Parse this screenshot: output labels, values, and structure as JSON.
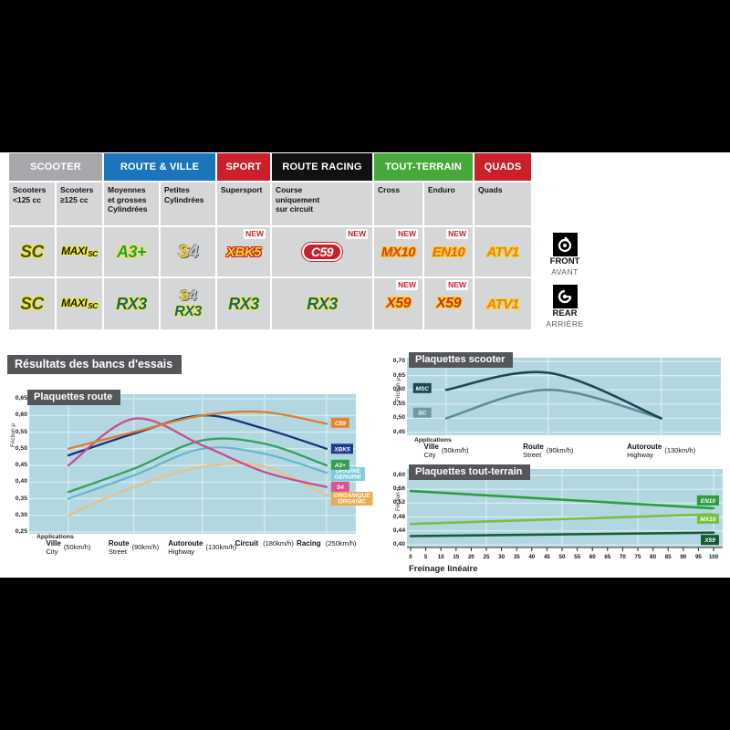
{
  "section_title": "Résultats des bancs d'essais",
  "table": {
    "new_badge": "NEW",
    "front": {
      "en": "FRONT",
      "fr": "AVANT"
    },
    "rear": {
      "en": "REAR",
      "fr": "ARRIÈRE"
    },
    "header": [
      {
        "label": "SCOOTER",
        "color": "#a6a8ab",
        "span": 2
      },
      {
        "label": "ROUTE & VILLE",
        "color": "#1b75bc",
        "span": 2
      },
      {
        "label": "SPORT",
        "color": "#c9202c",
        "span": 1
      },
      {
        "label": "ROUTE RACING",
        "color": "#111111",
        "span": 1
      },
      {
        "label": "TOUT-TERRAIN",
        "color": "#48a93b",
        "span": 2
      },
      {
        "label": "QUADS",
        "color": "#c9202c",
        "span": 1
      }
    ],
    "subheader": [
      "Scooters\n<125 cc",
      "Scooters\n≥125 cc",
      "Moyennes\net grosses\nCylindrées",
      "Petites\nCylindrées",
      "Supersport",
      "Course\nuniquement\nsur circuit",
      "Cross",
      "Enduro",
      "Quads"
    ],
    "rows": [
      {
        "side": "front",
        "cells": [
          {
            "logos": [
              {
                "text": "SC",
                "style": "sc"
              }
            ]
          },
          {
            "logos": [
              {
                "text": "MAXI",
                "sub": "SC",
                "style": "maxisc"
              }
            ]
          },
          {
            "logos": [
              {
                "text": "A3+",
                "style": "a3"
              }
            ]
          },
          {
            "logos": [
              {
                "text": "S4",
                "style": "s4"
              }
            ]
          },
          {
            "logos": [
              {
                "text": "XBK5",
                "style": "xbk5"
              }
            ],
            "new": true
          },
          {
            "logos": [
              {
                "text": "C59",
                "style": "c59"
              }
            ],
            "new": true
          },
          {
            "logos": [
              {
                "text": "MX10",
                "style": "mx10"
              }
            ],
            "new": true
          },
          {
            "logos": [
              {
                "text": "EN10",
                "style": "en10"
              }
            ],
            "new": true
          },
          {
            "logos": [
              {
                "text": "ATV1",
                "style": "atv1"
              }
            ]
          }
        ]
      },
      {
        "side": "rear",
        "cells": [
          {
            "logos": [
              {
                "text": "SC",
                "style": "sc"
              }
            ]
          },
          {
            "logos": [
              {
                "text": "MAXI",
                "sub": "SC",
                "style": "maxisc"
              }
            ]
          },
          {
            "logos": [
              {
                "text": "RX3",
                "style": "rx3"
              }
            ]
          },
          {
            "logos": [
              {
                "text": "S4",
                "style": "s4"
              },
              {
                "text": "RX3",
                "style": "rx3"
              }
            ]
          },
          {
            "logos": [
              {
                "text": "RX3",
                "style": "rx3"
              }
            ]
          },
          {
            "logos": [
              {
                "text": "RX3",
                "style": "rx3"
              }
            ]
          },
          {
            "logos": [
              {
                "text": "X59",
                "style": "x59"
              }
            ],
            "new": true
          },
          {
            "logos": [
              {
                "text": "X59",
                "style": "x59"
              }
            ],
            "new": true
          },
          {
            "logos": [
              {
                "text": "ATV1",
                "style": "atv1"
              }
            ]
          }
        ]
      }
    ]
  },
  "chart_data": [
    {
      "id": "route",
      "type": "line",
      "title": "Plaquettes route",
      "ylabel": "Friction µ",
      "xlabel": "Applications",
      "ylim": [
        0.25,
        0.65
      ],
      "yticks": [
        "0,65",
        "0,60",
        "0,55",
        "0,50",
        "0,45",
        "0,40",
        "0,35",
        "0,30",
        "0,25"
      ],
      "categories": [
        {
          "fr": "Ville",
          "en": "City",
          "speed": "(50km/h)"
        },
        {
          "fr": "Route",
          "en": "Street",
          "speed": "(90km/h)"
        },
        {
          "fr": "Autoroute",
          "en": "Highway",
          "speed": "(130km/h)"
        },
        {
          "fr": "Circuit",
          "en": "",
          "speed": "(180km/h)"
        },
        {
          "fr": "Racing",
          "en": "",
          "speed": "(250km/h)"
        }
      ],
      "series": [
        {
          "name": "ORGANIQUE",
          "color": "#e3c28b",
          "values": [
            0.3,
            0.385,
            0.445,
            0.447,
            0.36
          ],
          "label": [
            "ORGANIQUE",
            "ORGANIC"
          ],
          "label_bg": "#efa94f",
          "label_v": 0.35
        },
        {
          "name": "ORIGINE",
          "color": "#66b9cc",
          "values": [
            0.35,
            0.42,
            0.5,
            0.485,
            0.428
          ],
          "label": [
            "ORIGINE",
            "GENUINE"
          ],
          "label_bg": "#7ecbdc",
          "label_v": 0.424
        },
        {
          "name": "A3+",
          "color": "#35a05c",
          "values": [
            0.37,
            0.44,
            0.525,
            0.515,
            0.45
          ],
          "label": [
            "A3+"
          ],
          "label_bg": "#33a04e",
          "label_v": 0.452
        },
        {
          "name": "XBK5",
          "color": "#1b2f7e",
          "values": [
            0.48,
            0.545,
            0.6,
            0.56,
            0.5
          ],
          "label": [
            "XBK5"
          ],
          "label_bg": "#1c3d8f",
          "label_v": 0.5
        },
        {
          "name": "S4",
          "color": "#c94d8c",
          "values": [
            0.45,
            0.59,
            0.51,
            0.43,
            0.385
          ],
          "label": [
            "S4"
          ],
          "label_bg": "#d9568e",
          "label_v": 0.386
        },
        {
          "name": "C59",
          "color": "#dd7d2f",
          "values": [
            0.5,
            0.55,
            0.6,
            0.61,
            0.575
          ],
          "label": [
            "C59"
          ],
          "label_bg": "#e8832c",
          "label_v": 0.578
        }
      ]
    },
    {
      "id": "scooter",
      "type": "line",
      "title": "Plaquettes scooter",
      "ylabel": "Friction µ",
      "xlabel": "Applications",
      "ylim": [
        0.45,
        0.7
      ],
      "yticks": [
        "0,70",
        "0,65",
        "0,60",
        "0,55",
        "0,50",
        "0,45"
      ],
      "categories": [
        {
          "fr": "Ville",
          "en": "City",
          "speed": "(50km/h)"
        },
        {
          "fr": "Route",
          "en": "Street",
          "speed": "(90km/h)"
        },
        {
          "fr": "Autoroute",
          "en": "Highway",
          "speed": "(130km/h)"
        }
      ],
      "series": [
        {
          "name": "SC",
          "color": "#5d8d99",
          "values": [
            0.5,
            0.6,
            0.5
          ],
          "label": [
            "SC"
          ],
          "label_bg": "#6f9aa5",
          "label_pos": {
            "fx": 0.095,
            "v": 0.52
          }
        },
        {
          "name": "MSC",
          "color": "#1d4654",
          "values": [
            0.6,
            0.66,
            0.5
          ],
          "label": [
            "MSC"
          ],
          "label_bg": "#1d4654",
          "label_pos": {
            "fx": 0.095,
            "v": 0.606
          }
        }
      ]
    },
    {
      "id": "toutterrain",
      "type": "line",
      "title": "Plaquettes tout-terrain",
      "ylabel": "Friction µ",
      "xlabel": "Freinage linéaire",
      "ylim": [
        0.4,
        0.6
      ],
      "yticks": [
        "0,60",
        "0,56",
        "0,52",
        "0,48",
        "0,44",
        "0,40"
      ],
      "x": {
        "min": 0,
        "max": 100,
        "step": 5
      },
      "series": [
        {
          "name": "EN10",
          "color": "#2e9c3f",
          "values": [
            [
              0,
              0.555
            ],
            [
              100,
              0.505
            ]
          ],
          "label": [
            "EN10"
          ],
          "label_bg": "#2e9c3f",
          "label_v": 0.528
        },
        {
          "name": "MX10",
          "color": "#76c043",
          "values": [
            [
              0,
              0.46
            ],
            [
              100,
              0.488
            ]
          ],
          "label": [
            "MX10"
          ],
          "label_bg": "#76c043",
          "label_v": 0.475
        },
        {
          "name": "X59",
          "color": "#145b33",
          "values": [
            [
              0,
              0.425
            ],
            [
              100,
              0.435
            ]
          ],
          "label": [
            "X59"
          ],
          "label_bg": "#145b33",
          "label_v": 0.414
        }
      ]
    }
  ]
}
